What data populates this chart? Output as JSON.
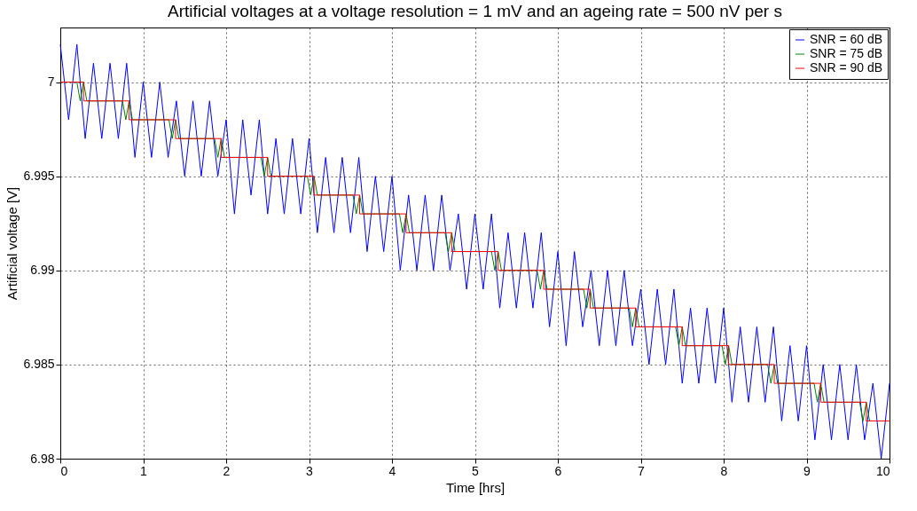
{
  "chart_data": {
    "type": "line",
    "title": "Artificial voltages at a voltage resolution = 1 mV and an ageing rate = 500 nV per s",
    "xlabel": "Time [hrs]",
    "ylabel": "Artificial voltage [V]",
    "xlim": [
      0,
      10
    ],
    "xticks": [
      0,
      1,
      2,
      3,
      4,
      5,
      6,
      7,
      8,
      9,
      10
    ],
    "ylim": [
      6.98,
      7.0029
    ],
    "yticks": [
      6.98,
      6.985,
      6.99,
      6.995,
      7
    ],
    "grid": true,
    "legend": "top right",
    "line_style": "solid",
    "marker": "none",
    "series": [
      {
        "name": "SNR = 60 dB",
        "color": "#0000ff",
        "type": "line",
        "x": [
          0,
          0.1,
          0.2,
          0.3,
          0.4,
          0.5,
          0.6,
          0.7,
          0.8,
          0.9,
          1,
          1.1,
          1.2,
          1.3,
          1.4,
          1.5,
          1.6,
          1.7,
          1.8,
          1.9,
          2,
          2.1,
          2.2,
          2.3,
          2.4,
          2.5,
          2.6,
          2.7,
          2.8,
          2.9,
          3,
          3.1,
          3.2,
          3.3,
          3.4,
          3.5,
          3.6,
          3.7,
          3.8,
          3.9,
          4,
          4.1,
          4.2,
          4.3,
          4.4,
          4.5,
          4.6,
          4.7,
          4.8,
          4.9,
          5,
          5.1,
          5.2,
          5.3,
          5.4,
          5.5,
          5.6,
          5.7,
          5.8,
          5.9,
          6,
          6.1,
          6.2,
          6.3,
          6.4,
          6.5,
          6.6,
          6.7,
          6.8,
          6.9,
          7,
          7.1,
          7.2,
          7.3,
          7.4,
          7.5,
          7.6,
          7.7,
          7.8,
          7.9,
          8,
          8.1,
          8.2,
          8.3,
          8.4,
          8.5,
          8.6,
          8.7,
          8.8,
          8.9,
          9,
          9.1,
          9.2,
          9.3,
          9.4,
          9.5,
          9.6,
          9.7,
          9.8,
          9.9,
          10
        ],
        "values": [
          7.002,
          6.998,
          7.002,
          6.997,
          7.001,
          6.997,
          7.001,
          6.997,
          7.001,
          6.996,
          7.0,
          6.996,
          7.0,
          6.996,
          6.999,
          6.995,
          6.999,
          6.995,
          6.999,
          6.995,
          6.998,
          6.993,
          6.998,
          6.994,
          6.998,
          6.993,
          6.997,
          6.993,
          6.997,
          6.993,
          6.997,
          6.992,
          6.996,
          6.992,
          6.996,
          6.992,
          6.996,
          6.991,
          6.995,
          6.991,
          6.995,
          6.99,
          6.994,
          6.99,
          6.994,
          6.99,
          6.994,
          6.99,
          6.993,
          6.989,
          6.993,
          6.989,
          6.993,
          6.988,
          6.992,
          6.988,
          6.992,
          6.988,
          6.992,
          6.987,
          6.991,
          6.986,
          6.991,
          6.987,
          6.99,
          6.986,
          6.99,
          6.986,
          6.99,
          6.986,
          6.989,
          6.985,
          6.989,
          6.985,
          6.989,
          6.984,
          6.988,
          6.984,
          6.988,
          6.984,
          6.988,
          6.983,
          6.987,
          6.983,
          6.987,
          6.983,
          6.987,
          6.982,
          6.986,
          6.982,
          6.986,
          6.981,
          6.985,
          6.981,
          6.985,
          6.981,
          6.985,
          6.981,
          6.984,
          6.98,
          6.984
        ]
      },
      {
        "name": "SNR = 75 dB",
        "color": "#008000",
        "type": "line",
        "x": [
          0,
          0.2,
          0.24,
          0.28,
          0.32,
          0.75,
          0.79,
          0.83,
          0.87,
          1.31,
          1.35,
          1.39,
          1.43,
          1.86,
          1.9,
          1.94,
          1.98,
          2.42,
          2.46,
          2.5,
          2.54,
          2.98,
          3.02,
          3.06,
          3.1,
          3.53,
          3.57,
          3.61,
          3.65,
          4.09,
          4.13,
          4.17,
          4.21,
          4.64,
          4.68,
          4.72,
          4.76,
          5.2,
          5.24,
          5.28,
          5.32,
          5.75,
          5.79,
          5.83,
          5.87,
          6.31,
          6.35,
          6.39,
          6.43,
          6.86,
          6.9,
          6.94,
          6.98,
          7.42,
          7.46,
          7.5,
          7.54,
          7.98,
          8.02,
          8.06,
          8.1,
          8.53,
          8.57,
          8.61,
          8.65,
          9.09,
          9.13,
          9.17,
          9.21,
          9.64,
          9.68,
          9.72,
          9.76
        ],
        "values": [
          7.0,
          7.0,
          6.999,
          7.0,
          6.999,
          6.999,
          6.998,
          6.999,
          6.998,
          6.998,
          6.997,
          6.998,
          6.997,
          6.997,
          6.996,
          6.997,
          6.996,
          6.996,
          6.995,
          6.996,
          6.995,
          6.995,
          6.994,
          6.995,
          6.994,
          6.994,
          6.993,
          6.994,
          6.993,
          6.993,
          6.992,
          6.993,
          6.992,
          6.992,
          6.991,
          6.992,
          6.991,
          6.991,
          6.99,
          6.991,
          6.99,
          6.99,
          6.989,
          6.99,
          6.989,
          6.989,
          6.988,
          6.989,
          6.988,
          6.988,
          6.987,
          6.988,
          6.987,
          6.987,
          6.986,
          6.987,
          6.986,
          6.986,
          6.985,
          6.986,
          6.985,
          6.985,
          6.984,
          6.985,
          6.984,
          6.984,
          6.983,
          6.984,
          6.983,
          6.983,
          6.982,
          6.983,
          6.982
        ]
      },
      {
        "name": "SNR = 90 dB",
        "color": "#ff0000",
        "type": "step",
        "x": [
          0,
          0.28,
          0.83,
          1.39,
          1.94,
          2.5,
          3.06,
          3.61,
          4.17,
          4.72,
          5.28,
          5.83,
          6.39,
          6.94,
          7.5,
          8.06,
          8.61,
          9.17,
          9.72,
          10
        ],
        "values": [
          7.0,
          6.999,
          6.998,
          6.997,
          6.996,
          6.995,
          6.994,
          6.993,
          6.992,
          6.991,
          6.99,
          6.989,
          6.988,
          6.987,
          6.986,
          6.985,
          6.984,
          6.983,
          6.982,
          6.982
        ]
      }
    ]
  }
}
